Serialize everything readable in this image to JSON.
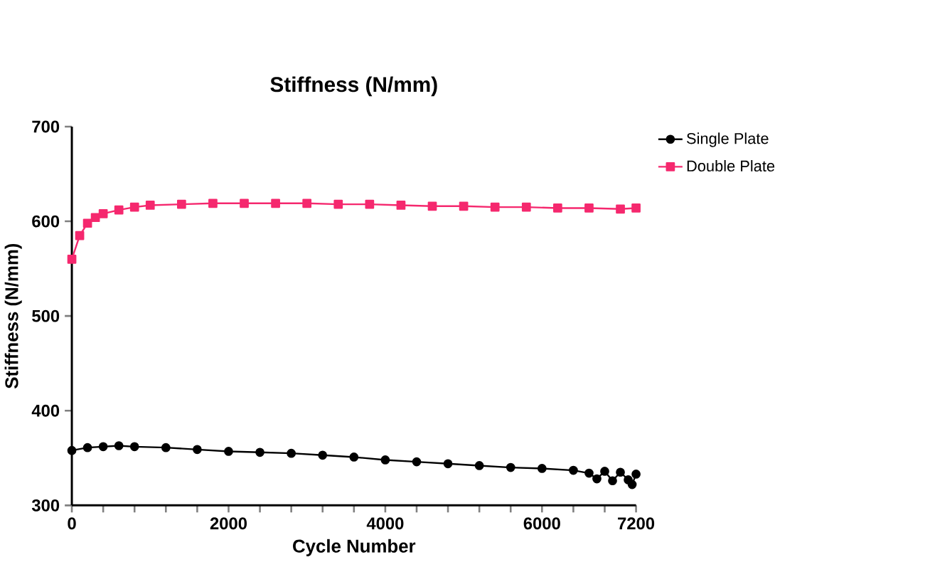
{
  "chart_data": {
    "type": "line",
    "title": "Stiffness (N/mm)",
    "xlabel": "Cycle Number",
    "ylabel": "Stiffness (N/mm)",
    "xlim": [
      0,
      7200
    ],
    "ylim": [
      300,
      700
    ],
    "xticks": [
      0,
      {
        "value": 400,
        "label": null
      },
      {
        "value": 800,
        "label": null
      },
      {
        "value": 1200,
        "label": null
      },
      {
        "value": 1600,
        "label": null
      },
      2000,
      {
        "value": 2400,
        "label": null
      },
      {
        "value": 2800,
        "label": null
      },
      {
        "value": 3200,
        "label": null
      },
      {
        "value": 3600,
        "label": null
      },
      4000,
      {
        "value": 4400,
        "label": null
      },
      {
        "value": 4800,
        "label": null
      },
      {
        "value": 5200,
        "label": null
      },
      {
        "value": 5600,
        "label": null
      },
      6000,
      {
        "value": 6400,
        "label": null
      },
      {
        "value": 6800,
        "label": null
      },
      7200
    ],
    "yticks": [
      300,
      400,
      500,
      600,
      700
    ],
    "grid": false,
    "legend": "top right",
    "series": [
      {
        "name": "Single Plate",
        "color": "#000000",
        "marker": "circle",
        "x": [
          0,
          200,
          400,
          600,
          800,
          1200,
          1600,
          2000,
          2400,
          2800,
          3200,
          3600,
          4000,
          4400,
          4800,
          5200,
          5600,
          6000,
          6400,
          6600,
          6700,
          6800,
          6900,
          7000,
          7100,
          7150,
          7200
        ],
        "values": [
          358,
          361,
          362,
          363,
          362,
          361,
          359,
          357,
          356,
          355,
          353,
          351,
          348,
          346,
          344,
          342,
          340,
          339,
          337,
          334,
          328,
          336,
          326,
          335,
          327,
          322,
          333
        ]
      },
      {
        "name": "Double Plate",
        "color": "#f5286e",
        "marker": "square",
        "x": [
          0,
          100,
          200,
          300,
          400,
          600,
          800,
          1000,
          1400,
          1800,
          2200,
          2600,
          3000,
          3400,
          3800,
          4200,
          4600,
          5000,
          5400,
          5800,
          6200,
          6600,
          7000,
          7200
        ],
        "values": [
          560,
          585,
          598,
          604,
          608,
          612,
          615,
          617,
          618,
          619,
          619,
          619,
          619,
          618,
          618,
          617,
          616,
          616,
          615,
          615,
          614,
          614,
          613,
          614
        ]
      }
    ]
  }
}
